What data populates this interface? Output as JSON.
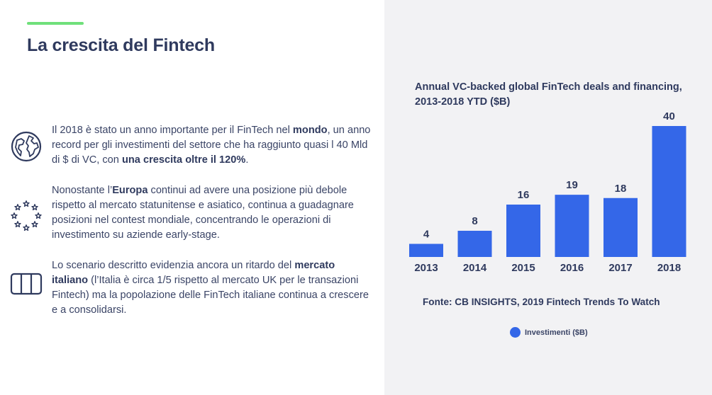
{
  "slide": {
    "title": "La crescita del Fintech",
    "accent_color": "#6fe07a"
  },
  "paragraphs": [
    {
      "icon": "globe-icon",
      "parts": [
        {
          "text": "Il 2018 è stato un anno importante per il FinTech nel ",
          "bold": false
        },
        {
          "text": "mondo",
          "bold": true
        },
        {
          "text": ", un anno record per gli investimenti del settore che ha raggiunto quasi l 40 Mld di $ di VC, con ",
          "bold": false
        },
        {
          "text": "una crescita oltre il 120%",
          "bold": true
        },
        {
          "text": ".",
          "bold": false
        }
      ]
    },
    {
      "icon": "eu-stars-icon",
      "parts": [
        {
          "text": "Nonostante l’",
          "bold": false
        },
        {
          "text": "Europa",
          "bold": true
        },
        {
          "text": " continui ad avere una posizione più debole rispetto al mercato statunitense e asiatico, continua a guadagnare posizioni nel contest mondiale, concentrando le operazioni di investimento su aziende early-stage.",
          "bold": false
        }
      ]
    },
    {
      "icon": "italy-flag-icon",
      "parts": [
        {
          "text": "Lo scenario descritto evidenzia ancora un ritardo del ",
          "bold": false
        },
        {
          "text": "mercato italiano",
          "bold": true
        },
        {
          "text": " (l’Italia è circa 1/5 rispetto al mercato UK per le transazioni Fintech) ma la popolazione delle FinTech italiane continua a crescere e a consolidarsi.",
          "bold": false
        }
      ]
    }
  ],
  "chart_data": {
    "type": "bar",
    "title": "Annual VC-backed global FinTech deals and financing, 2013-2018 YTD ($B)",
    "categories": [
      "2013",
      "2014",
      "2015",
      "2016",
      "2017",
      "2018"
    ],
    "series": [
      {
        "name": "Investimenti ($B)",
        "values": [
          4,
          8,
          16,
          19,
          18,
          40
        ]
      }
    ],
    "ylim": [
      0,
      40
    ],
    "grid": false,
    "legend_position": "bottom-center",
    "bar_color": "#3467e8"
  },
  "source": "Fonte: CB INSIGHTS, 2019 Fintech Trends To Watch"
}
